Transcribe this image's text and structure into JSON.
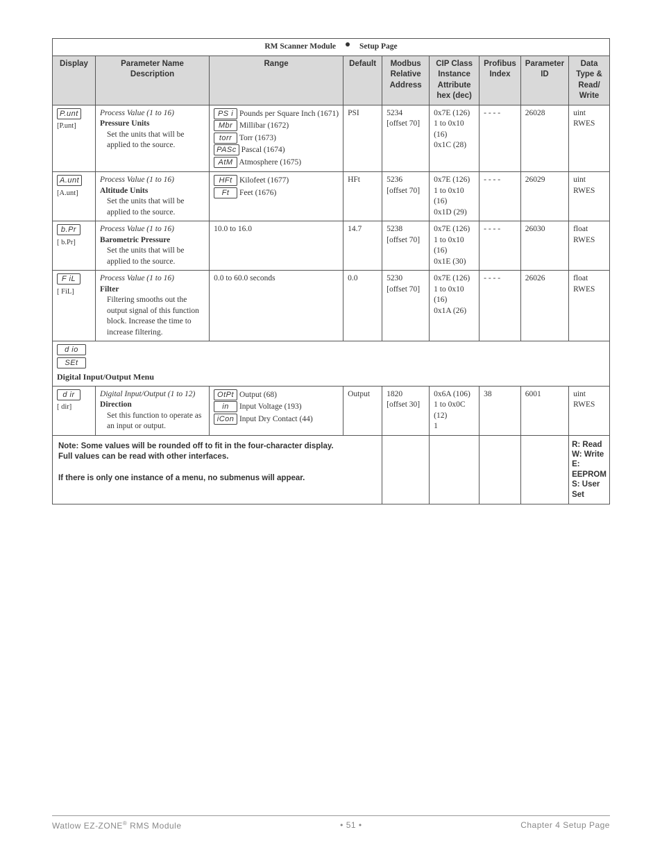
{
  "title_left": "RM Scanner Module",
  "title_right": "Setup Page",
  "headers": {
    "display": "Display",
    "param": "Parameter Name Description",
    "range": "Range",
    "default": "Default",
    "modbus": "Modbus Relative Address",
    "cip": "CIP Class Instance Attribute hex (dec)",
    "profibus": "Profibus Index",
    "pid": "Parameter ID",
    "dt": "Data Type & Read/ Write"
  },
  "rows": [
    {
      "seg": "P.unt",
      "sub": "[P.unt]",
      "pv": "Process Value (1 to 16)",
      "bold": "Pressure Units",
      "desc": "Set the units that will be applied to the source.",
      "range": [
        {
          "seg": "PS i",
          "txt": "Pounds per Square Inch (1671)"
        },
        {
          "seg": "Mbr",
          "txt": "Millibar (1672)"
        },
        {
          "seg": "torr",
          "txt": "Torr (1673)"
        },
        {
          "seg": "PASc",
          "txt": "Pascal (1674)"
        },
        {
          "seg": "AtM",
          "txt": "Atmosphere (1675)"
        }
      ],
      "default": "PSI",
      "modbus": "5234 [offset 70]",
      "cip": "0x7E (126) 1 to 0x10 (16) 0x1C (28)",
      "profibus": "- - - -",
      "pid": "26028",
      "dt": "uint RWES"
    },
    {
      "seg": "A.unt",
      "sub": "[A.unt]",
      "pv": "Process Value (1 to 16)",
      "bold": "Altitude Units",
      "desc": "Set the units that will be applied to the source.",
      "range": [
        {
          "seg": "HFt",
          "txt": "Kilofeet (1677)"
        },
        {
          "seg": "Ft",
          "txt": "Feet (1676)"
        }
      ],
      "default": "HFt",
      "modbus": "5236 [offset 70]",
      "cip": "0x7E (126) 1 to 0x10 (16) 0x1D (29)",
      "profibus": "- - - -",
      "pid": "26029",
      "dt": "uint RWES"
    },
    {
      "seg": "b.Pr",
      "sub": "[ b.Pr]",
      "pv": "Process Value (1 to 16)",
      "bold": "Barometric Pressure",
      "desc": "Set the units that will be applied to the source.",
      "range_text": "10.0 to 16.0",
      "default": "14.7",
      "modbus": "5238 [offset 70]",
      "cip": "0x7E (126) 1 to 0x10 (16) 0x1E (30)",
      "profibus": "- - - -",
      "pid": "26030",
      "dt": "float RWES"
    },
    {
      "seg": "F iL",
      "sub": "[ FiL]",
      "pv": "Process Value (1 to 16)",
      "bold": "Filter",
      "desc": "Filtering smooths out the output signal of this function block. Increase the time to increase filtering.",
      "range_text": "0.0 to 60.0 seconds",
      "default": "0.0",
      "modbus": "5230 [offset 70]",
      "cip": "0x7E (126) 1 to 0x10 (16) 0x1A (26)",
      "profibus": "- - - -",
      "pid": "26026",
      "dt": "float RWES"
    }
  ],
  "menu": {
    "seg1": "d io",
    "seg2": "SEt",
    "title": "Digital Input/Output Menu"
  },
  "row_dir": {
    "seg": "d ir",
    "sub": "[ dir]",
    "pv": "Digital Input/Output (1 to 12)",
    "bold": "Direction",
    "desc": "Set this function to operate as an input or output.",
    "range": [
      {
        "seg": "OtPt",
        "txt": "Output (68)"
      },
      {
        "seg": "in",
        "txt": "Input Voltage (193)"
      },
      {
        "seg": "iCon",
        "txt": "Input Dry Contact (44)"
      }
    ],
    "default": "Output",
    "modbus": "1820 [offset 30]",
    "cip": "0x6A (106) 1 to 0x0C (12) 1",
    "profibus": "38",
    "pid": "6001",
    "dt": "uint RWES"
  },
  "note": {
    "l1": "Note: Some values will be rounded off to fit in the four-character display.",
    "l2": "Full values can be read with other interfaces.",
    "l3": "If there is only one instance of a menu, no submenus will appear.",
    "legend": [
      "R: Read",
      "W: Write",
      "E: EEPROM",
      "S: User Set"
    ]
  },
  "footer": {
    "left": "Watlow EZ-ZONE",
    "left2": " RMS Module",
    "page": "51",
    "right": "Chapter 4 Setup Page"
  }
}
